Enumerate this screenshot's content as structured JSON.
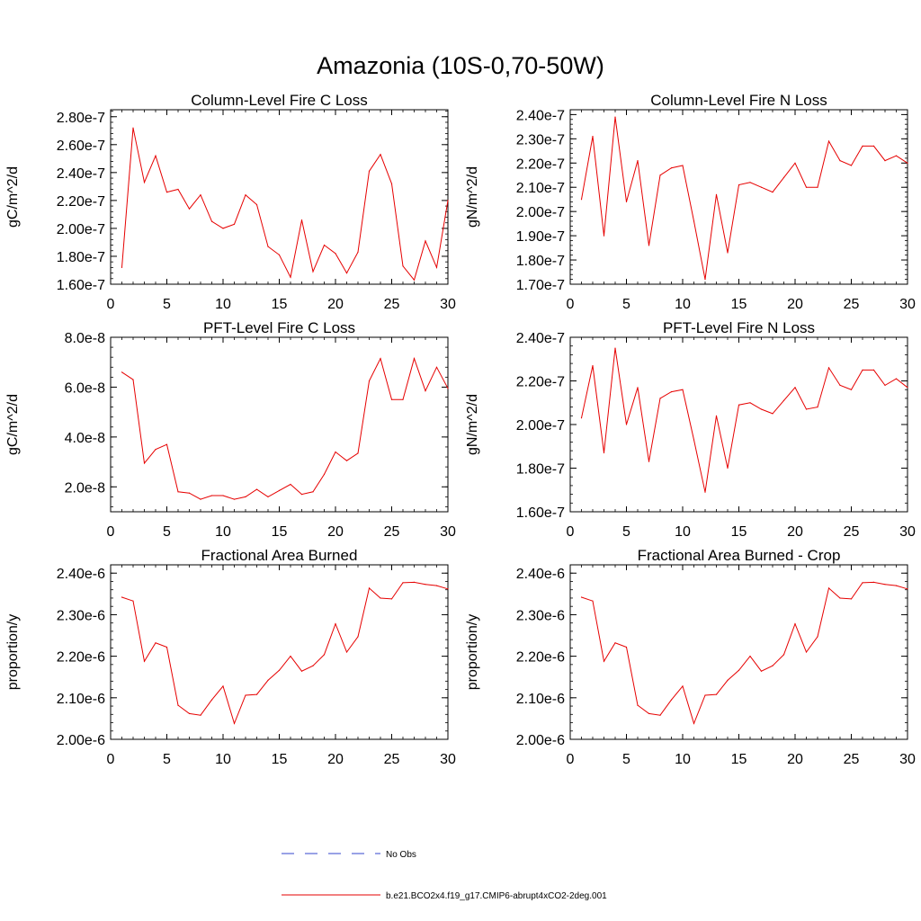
{
  "page_title": "Amazonia (10S-0,70-50W)",
  "line_color": "#e60000",
  "obs_color": "#3344cc",
  "legend": [
    {
      "label": "No Obs",
      "style": "dashed"
    },
    {
      "label": "b.e21.BCO2x4.f19_g17.CMIP6-abrupt4xCO2-2deg.001",
      "style": "solid"
    }
  ],
  "chart_data": [
    {
      "type": "line",
      "title": "Column-Level Fire C Loss",
      "ylabel": "gC/m^2/d",
      "xlim": [
        0,
        30
      ],
      "ylim": [
        1.6e-07,
        2.85e-07
      ],
      "xticks": [
        0,
        5,
        10,
        15,
        20,
        25,
        30
      ],
      "xtick_labels": [
        "0",
        "5",
        "10",
        "15",
        "20",
        "25",
        "30"
      ],
      "yticks": [
        1.6e-07,
        1.8e-07,
        2e-07,
        2.2e-07,
        2.4e-07,
        2.6e-07,
        2.8e-07
      ],
      "ytick_labels": [
        "1.60e-7",
        "1.80e-7",
        "2.00e-7",
        "2.20e-7",
        "2.40e-7",
        "2.60e-7",
        "2.80e-7"
      ],
      "series": [
        {
          "name": "b.e21.BCO2x4.f19_g17.CMIP6-abrupt4xCO2-2deg.001",
          "x": [
            1,
            2,
            3,
            4,
            5,
            6,
            7,
            8,
            9,
            10,
            11,
            12,
            13,
            14,
            15,
            16,
            17,
            18,
            19,
            20,
            21,
            22,
            23,
            24,
            25,
            26,
            27,
            28,
            29,
            30
          ],
          "y": [
            1.72e-07,
            2.72e-07,
            2.33e-07,
            2.52e-07,
            2.26e-07,
            2.28e-07,
            2.14e-07,
            2.24e-07,
            2.05e-07,
            2e-07,
            2.03e-07,
            2.24e-07,
            2.17e-07,
            1.87e-07,
            1.81e-07,
            1.65e-07,
            2.06e-07,
            1.69e-07,
            1.88e-07,
            1.82e-07,
            1.68e-07,
            1.83e-07,
            2.41e-07,
            2.53e-07,
            2.32e-07,
            1.73e-07,
            1.63e-07,
            1.91e-07,
            1.72e-07,
            2.2e-07
          ]
        }
      ]
    },
    {
      "type": "line",
      "title": "Column-Level Fire N Loss",
      "ylabel": "gN/m^2/d",
      "xlim": [
        0,
        30
      ],
      "ylim": [
        1.7e-07,
        2.42e-07
      ],
      "xticks": [
        0,
        5,
        10,
        15,
        20,
        25,
        30
      ],
      "xtick_labels": [
        "0",
        "5",
        "10",
        "15",
        "20",
        "25",
        "30"
      ],
      "yticks": [
        1.7e-07,
        1.8e-07,
        1.9e-07,
        2e-07,
        2.1e-07,
        2.2e-07,
        2.3e-07,
        2.4e-07
      ],
      "ytick_labels": [
        "1.70e-7",
        "1.80e-7",
        "1.90e-7",
        "2.00e-7",
        "2.10e-7",
        "2.20e-7",
        "2.30e-7",
        "2.40e-7"
      ],
      "series": [
        {
          "name": "b.e21.BCO2x4.f19_g17.CMIP6-abrupt4xCO2-2deg.001",
          "x": [
            1,
            2,
            3,
            4,
            5,
            6,
            7,
            8,
            9,
            10,
            11,
            12,
            13,
            14,
            15,
            16,
            17,
            18,
            19,
            20,
            21,
            22,
            23,
            24,
            25,
            26,
            27,
            28,
            29,
            30
          ],
          "y": [
            2.05e-07,
            2.31e-07,
            1.9e-07,
            2.39e-07,
            2.04e-07,
            2.21e-07,
            1.86e-07,
            2.15e-07,
            2.18e-07,
            2.19e-07,
            1.96e-07,
            1.72e-07,
            2.07e-07,
            1.83e-07,
            2.11e-07,
            2.12e-07,
            2.1e-07,
            2.08e-07,
            2.14e-07,
            2.2e-07,
            2.1e-07,
            2.1e-07,
            2.29e-07,
            2.21e-07,
            2.19e-07,
            2.27e-07,
            2.27e-07,
            2.21e-07,
            2.23e-07,
            2.2e-07
          ]
        }
      ]
    },
    {
      "type": "line",
      "title": "PFT-Level Fire C Loss",
      "ylabel": "gC/m^2/d",
      "xlim": [
        0,
        30
      ],
      "ylim": [
        1e-08,
        8e-08
      ],
      "xticks": [
        0,
        5,
        10,
        15,
        20,
        25,
        30
      ],
      "xtick_labels": [
        "0",
        "5",
        "10",
        "15",
        "20",
        "25",
        "30"
      ],
      "yticks": [
        2e-08,
        4e-08,
        6e-08,
        8e-08
      ],
      "ytick_labels": [
        "2.0e-8",
        "4.0e-8",
        "6.0e-8",
        "8.0e-8"
      ],
      "series": [
        {
          "name": "b.e21.BCO2x4.f19_g17.CMIP6-abrupt4xCO2-2deg.001",
          "x": [
            1,
            2,
            3,
            4,
            5,
            6,
            7,
            8,
            9,
            10,
            11,
            12,
            13,
            14,
            15,
            16,
            17,
            18,
            19,
            20,
            21,
            22,
            23,
            24,
            25,
            26,
            27,
            28,
            29,
            30
          ],
          "y": [
            6.6e-08,
            6.3e-08,
            2.95e-08,
            3.5e-08,
            3.7e-08,
            1.8e-08,
            1.75e-08,
            1.5e-08,
            1.65e-08,
            1.65e-08,
            1.5e-08,
            1.6e-08,
            1.9e-08,
            1.6e-08,
            1.85e-08,
            2.1e-08,
            1.7e-08,
            1.8e-08,
            2.5e-08,
            3.4e-08,
            3.05e-08,
            3.35e-08,
            6.25e-08,
            7.15e-08,
            5.5e-08,
            5.5e-08,
            7.15e-08,
            5.85e-08,
            6.8e-08,
            5.95e-08
          ]
        }
      ]
    },
    {
      "type": "line",
      "title": "PFT-Level Fire N Loss",
      "ylabel": "gN/m^2/d",
      "xlim": [
        0,
        30
      ],
      "ylim": [
        1.6e-07,
        2.4e-07
      ],
      "xticks": [
        0,
        5,
        10,
        15,
        20,
        25,
        30
      ],
      "xtick_labels": [
        "0",
        "5",
        "10",
        "15",
        "20",
        "25",
        "30"
      ],
      "yticks": [
        1.6e-07,
        1.8e-07,
        2e-07,
        2.2e-07,
        2.4e-07
      ],
      "ytick_labels": [
        "1.60e-7",
        "1.80e-7",
        "2.00e-7",
        "2.20e-7",
        "2.40e-7"
      ],
      "series": [
        {
          "name": "b.e21.BCO2x4.f19_g17.CMIP6-abrupt4xCO2-2deg.001",
          "x": [
            1,
            2,
            3,
            4,
            5,
            6,
            7,
            8,
            9,
            10,
            11,
            12,
            13,
            14,
            15,
            16,
            17,
            18,
            19,
            20,
            21,
            22,
            23,
            24,
            25,
            26,
            27,
            28,
            29,
            30
          ],
          "y": [
            2.03e-07,
            2.27e-07,
            1.87e-07,
            2.35e-07,
            2e-07,
            2.17e-07,
            1.83e-07,
            2.12e-07,
            2.15e-07,
            2.16e-07,
            1.93e-07,
            1.69e-07,
            2.04e-07,
            1.8e-07,
            2.09e-07,
            2.1e-07,
            2.07e-07,
            2.05e-07,
            2.11e-07,
            2.17e-07,
            2.07e-07,
            2.08e-07,
            2.26e-07,
            2.18e-07,
            2.16e-07,
            2.25e-07,
            2.25e-07,
            2.18e-07,
            2.21e-07,
            2.17e-07
          ]
        }
      ]
    },
    {
      "type": "line",
      "title": "Fractional Area Burned",
      "ylabel": "proportion/y",
      "xlim": [
        0,
        30
      ],
      "ylim": [
        2e-06,
        2.42e-06
      ],
      "xticks": [
        0,
        5,
        10,
        15,
        20,
        25,
        30
      ],
      "xtick_labels": [
        "0",
        "5",
        "10",
        "15",
        "20",
        "25",
        "30"
      ],
      "yticks": [
        2e-06,
        2.1e-06,
        2.2e-06,
        2.3e-06,
        2.4e-06
      ],
      "ytick_labels": [
        "2.00e-6",
        "2.10e-6",
        "2.20e-6",
        "2.30e-6",
        "2.40e-6"
      ],
      "series": [
        {
          "name": "b.e21.BCO2x4.f19_g17.CMIP6-abrupt4xCO2-2deg.001",
          "x": [
            1,
            2,
            3,
            4,
            5,
            6,
            7,
            8,
            9,
            10,
            11,
            12,
            13,
            14,
            15,
            16,
            17,
            18,
            19,
            20,
            21,
            22,
            23,
            24,
            25,
            26,
            27,
            28,
            29,
            30
          ],
          "y": [
            2.342e-06,
            2.333e-06,
            2.188e-06,
            2.232e-06,
            2.222e-06,
            2.082e-06,
            2.062e-06,
            2.058e-06,
            2.095e-06,
            2.128e-06,
            2.038e-06,
            2.106e-06,
            2.108e-06,
            2.142e-06,
            2.166e-06,
            2.2e-06,
            2.164e-06,
            2.177e-06,
            2.204e-06,
            2.278e-06,
            2.21e-06,
            2.247e-06,
            2.364e-06,
            2.34e-06,
            2.338e-06,
            2.377e-06,
            2.378e-06,
            2.373e-06,
            2.37e-06,
            2.362e-06
          ]
        }
      ]
    },
    {
      "type": "line",
      "title": "Fractional Area Burned - Crop",
      "ylabel": "proportion/y",
      "xlim": [
        0,
        30
      ],
      "ylim": [
        2e-06,
        2.42e-06
      ],
      "xticks": [
        0,
        5,
        10,
        15,
        20,
        25,
        30
      ],
      "xtick_labels": [
        "0",
        "5",
        "10",
        "15",
        "20",
        "25",
        "30"
      ],
      "yticks": [
        2e-06,
        2.1e-06,
        2.2e-06,
        2.3e-06,
        2.4e-06
      ],
      "ytick_labels": [
        "2.00e-6",
        "2.10e-6",
        "2.20e-6",
        "2.30e-6",
        "2.40e-6"
      ],
      "series": [
        {
          "name": "b.e21.BCO2x4.f19_g17.CMIP6-abrupt4xCO2-2deg.001",
          "x": [
            1,
            2,
            3,
            4,
            5,
            6,
            7,
            8,
            9,
            10,
            11,
            12,
            13,
            14,
            15,
            16,
            17,
            18,
            19,
            20,
            21,
            22,
            23,
            24,
            25,
            26,
            27,
            28,
            29,
            30
          ],
          "y": [
            2.342e-06,
            2.333e-06,
            2.188e-06,
            2.232e-06,
            2.222e-06,
            2.082e-06,
            2.062e-06,
            2.058e-06,
            2.095e-06,
            2.128e-06,
            2.038e-06,
            2.106e-06,
            2.108e-06,
            2.142e-06,
            2.166e-06,
            2.2e-06,
            2.164e-06,
            2.177e-06,
            2.204e-06,
            2.278e-06,
            2.21e-06,
            2.247e-06,
            2.364e-06,
            2.34e-06,
            2.338e-06,
            2.377e-06,
            2.378e-06,
            2.373e-06,
            2.37e-06,
            2.362e-06
          ]
        }
      ]
    }
  ]
}
